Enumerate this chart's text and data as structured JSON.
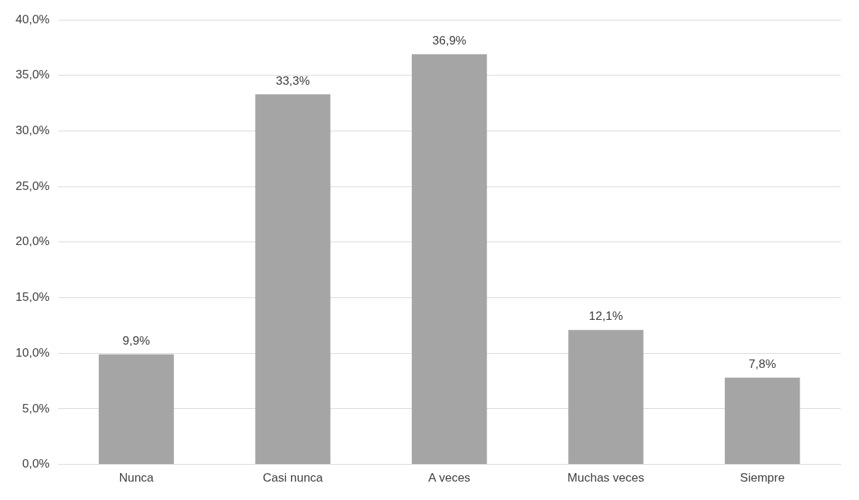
{
  "chart_data": {
    "type": "bar",
    "categories": [
      "Nunca",
      "Casi nunca",
      "A veces",
      "Muchas veces",
      "Siempre"
    ],
    "values": [
      9.9,
      33.3,
      36.9,
      12.1,
      7.8
    ],
    "value_labels": [
      "9,9%",
      "33,3%",
      "36,9%",
      "12,1%",
      "7,8%"
    ],
    "color": "#a5a5a5",
    "ylim": [
      0,
      40
    ],
    "yticks": [
      {
        "value": 0,
        "label": "0,0%"
      },
      {
        "value": 5,
        "label": "5,0%"
      },
      {
        "value": 10,
        "label": "10,0%"
      },
      {
        "value": 15,
        "label": "15,0%"
      },
      {
        "value": 20,
        "label": "20,0%"
      },
      {
        "value": 25,
        "label": "25,0%"
      },
      {
        "value": 30,
        "label": "30,0%"
      },
      {
        "value": 35,
        "label": "35,0%"
      },
      {
        "value": 40,
        "label": "40,0%"
      }
    ],
    "grid": "y",
    "legend": false
  }
}
